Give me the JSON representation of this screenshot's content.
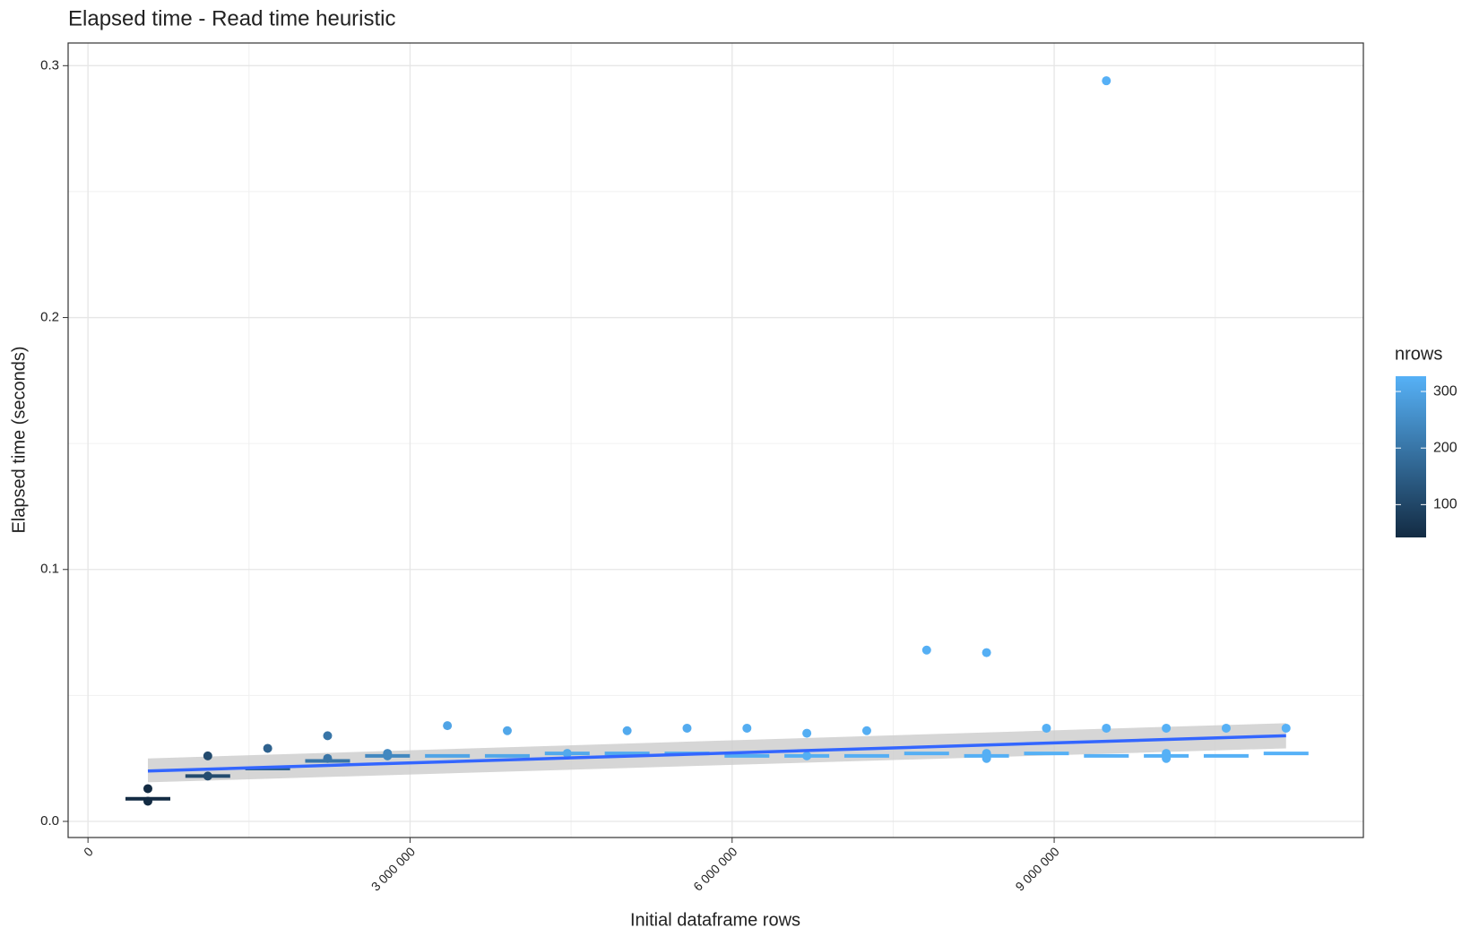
{
  "chart_data": {
    "type": "scatter",
    "title": "Elapsed time - Read time heuristic",
    "x_label": "Initial dataframe rows",
    "y_label": "Elapsed time (seconds)",
    "xlim": [
      -185000,
      11880000
    ],
    "ylim": [
      -0.0064,
      0.309
    ],
    "xticks": [
      0,
      {
        "value": 3000000,
        "label": "3 000 000"
      },
      {
        "value": 6000000,
        "label": "6 000 000"
      },
      {
        "value": 9000000,
        "label": "9 000 000"
      }
    ],
    "xminor": [
      1500000,
      4500000,
      7500000,
      10500000
    ],
    "yticks": [
      {
        "value": 0,
        "label": "0.0"
      },
      0.1,
      0.2,
      0.3
    ],
    "yminor": [
      0.05,
      0.15,
      0.25
    ],
    "grid": true,
    "points": {
      "x": [
        558000,
        558000,
        1116000,
        1116000,
        1674000,
        2232000,
        2232000,
        2790000,
        2790000,
        3348000,
        3906000,
        4464000,
        5022000,
        5580000,
        6138000,
        6696000,
        6696000,
        7254000,
        7812000,
        8370000,
        8370000,
        8370000,
        8928000,
        9486000,
        9486000,
        10044000,
        10044000,
        10044000,
        10602000,
        11160000
      ],
      "values": [
        0.013,
        0.008,
        0.026,
        0.018,
        0.029,
        0.034,
        0.025,
        0.027,
        0.026,
        0.038,
        0.036,
        0.027,
        0.036,
        0.037,
        0.037,
        0.035,
        0.026,
        0.036,
        0.068,
        0.067,
        0.027,
        0.025,
        0.037,
        0.294,
        0.037,
        0.037,
        0.027,
        0.025,
        0.037,
        0.037
      ],
      "nrows": [
        42,
        42,
        110,
        110,
        160,
        200,
        200,
        240,
        240,
        300,
        305,
        310,
        312,
        315,
        318,
        320,
        320,
        321,
        322,
        323,
        323,
        323,
        324,
        325,
        325,
        326,
        326,
        326,
        326,
        327
      ]
    },
    "medians": {
      "x": [
        558000,
        1116000,
        1674000,
        2232000,
        2790000,
        3348000,
        3906000,
        4464000,
        5022000,
        5580000,
        6138000,
        6696000,
        7254000,
        7812000,
        8370000,
        8928000,
        9486000,
        10044000,
        10602000,
        11160000
      ],
      "values": [
        0.009,
        0.018,
        0.021,
        0.024,
        0.026,
        0.026,
        0.026,
        0.027,
        0.027,
        0.027,
        0.026,
        0.026,
        0.026,
        0.027,
        0.026,
        0.027,
        0.026,
        0.026,
        0.026,
        0.027
      ],
      "nrows": [
        42,
        110,
        160,
        200,
        240,
        300,
        305,
        310,
        312,
        315,
        318,
        320,
        321,
        322,
        323,
        324,
        325,
        326,
        326,
        327
      ]
    },
    "fit": {
      "x": [
        558000,
        11160000
      ],
      "values": [
        0.02,
        0.034
      ],
      "lower": [
        0.0155,
        0.029
      ],
      "upper": [
        0.025,
        0.039
      ],
      "color": "#3366FF",
      "band_color": "#CCCCCC"
    },
    "color_scale": {
      "title": "nrows",
      "low_color": "#132B43",
      "high_color": "#56B1F7",
      "limits": [
        42,
        327
      ],
      "ticks": [
        100,
        200,
        300
      ]
    }
  }
}
